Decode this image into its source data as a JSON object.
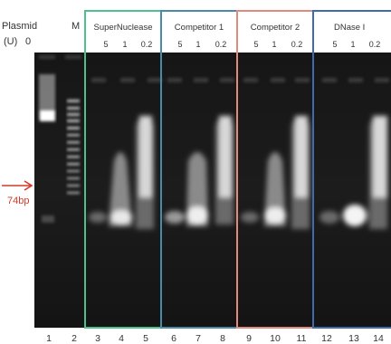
{
  "header": {
    "plasmid_label": "Plasmid",
    "marker_label": "M",
    "unit_label": "(U)",
    "unit_zero": "0"
  },
  "groups": [
    {
      "name": "SuperNuclease",
      "color": "#4fc08d",
      "doses": [
        "5",
        "1",
        "0.2"
      ]
    },
    {
      "name": "Competitor 1",
      "color": "#4a89a8",
      "doses": [
        "5",
        "1",
        "0.2"
      ]
    },
    {
      "name": "Competitor 2",
      "color": "#e08a80",
      "doses": [
        "5",
        "1",
        "0.2"
      ]
    },
    {
      "name": "DNase I",
      "color": "#3f6ab0",
      "doses": [
        "5",
        "1",
        "0.2"
      ]
    }
  ],
  "marker_annotation": {
    "label": "74bp",
    "color": "#d43a2a"
  },
  "lanes": [
    "1",
    "2",
    "3",
    "4",
    "5",
    "6",
    "7",
    "8",
    "9",
    "10",
    "11",
    "12",
    "13",
    "14"
  ]
}
